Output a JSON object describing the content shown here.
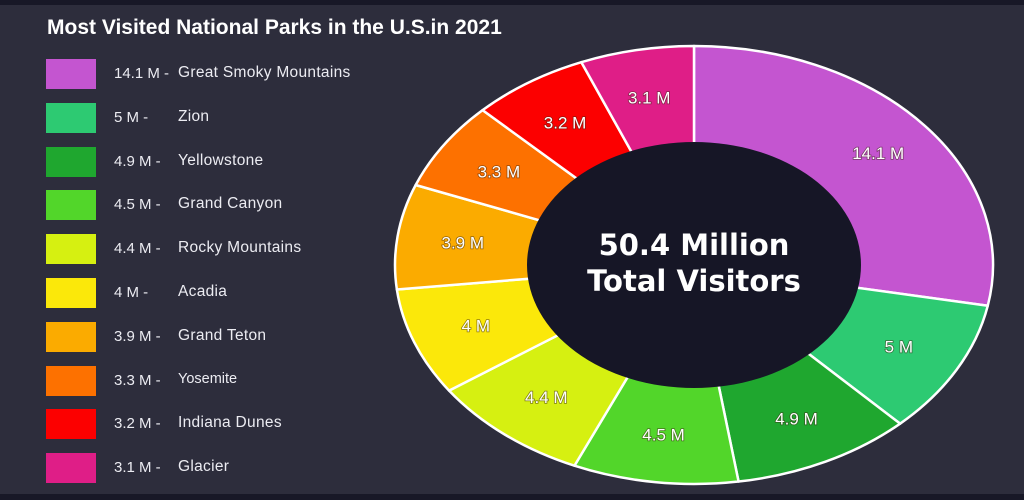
{
  "chart_data": {
    "type": "pie",
    "subtype": "donut",
    "title": "Most Visited National Parks in the U.S.in 2021",
    "unit": "million visitors",
    "center_label": [
      "50.4 Million",
      "Total Visitors"
    ],
    "total": 50.4,
    "start_angle": "12 o'clock, clockwise",
    "legend_position": "left",
    "categories": [
      "Great Smoky Mountains",
      "Zion",
      "Yellowstone",
      "Grand Canyon",
      "Rocky Mountains",
      "Acadia",
      "Grand Teton",
      "Yosemite",
      "Indiana Dunes",
      "Glacier"
    ],
    "values": [
      14.1,
      5,
      4.9,
      4.5,
      4.4,
      4,
      3.9,
      3.3,
      3.2,
      3.1
    ],
    "slice_labels": [
      "14.1 M",
      "5 M",
      "4.9 M",
      "4.5 M",
      "4.4 M",
      "4 M",
      "3.9 M",
      "3.3 M",
      "3.2 M",
      "3.1 M"
    ],
    "colors": [
      "#c455d0",
      "#2dca72",
      "#1fa72f",
      "#52d62a",
      "#d6f011",
      "#fbe80a",
      "#fbab00",
      "#fd7100",
      "#fc0000",
      "#df1e87"
    ]
  },
  "title": "Most Visited National Parks in the U.S.in 2021",
  "center": {
    "line1": "50.4 Million",
    "line2": "Total Visitors"
  },
  "legend": [
    {
      "value": "14.1 M -",
      "name": "Great Smoky Mountains",
      "color": "#c455d0"
    },
    {
      "value": "5 M -",
      "name": "Zion",
      "color": "#2dca72"
    },
    {
      "value": "4.9 M -",
      "name": "Yellowstone",
      "color": "#1fa72f"
    },
    {
      "value": "4.5 M -",
      "name": "Grand Canyon",
      "color": "#52d62a"
    },
    {
      "value": "4.4 M -",
      "name": "Rocky Mountains",
      "color": "#d6f011"
    },
    {
      "value": "4 M -",
      "name": "Acadia",
      "color": "#fbe80a"
    },
    {
      "value": "3.9 M -",
      "name": "Grand Teton",
      "color": "#fbab00"
    },
    {
      "value": "3.3 M -",
      "name": "Yosemite",
      "color": "#fd7100"
    },
    {
      "value": "3.2 M -",
      "name": "Indiana Dunes",
      "color": "#fc0000"
    },
    {
      "value": "3.1 M -",
      "name": "Glacier",
      "color": "#df1e87"
    }
  ],
  "colors": {
    "background": "#2d2d3c",
    "band": "#181827",
    "hole": "#161626",
    "text": "#ffffff"
  }
}
